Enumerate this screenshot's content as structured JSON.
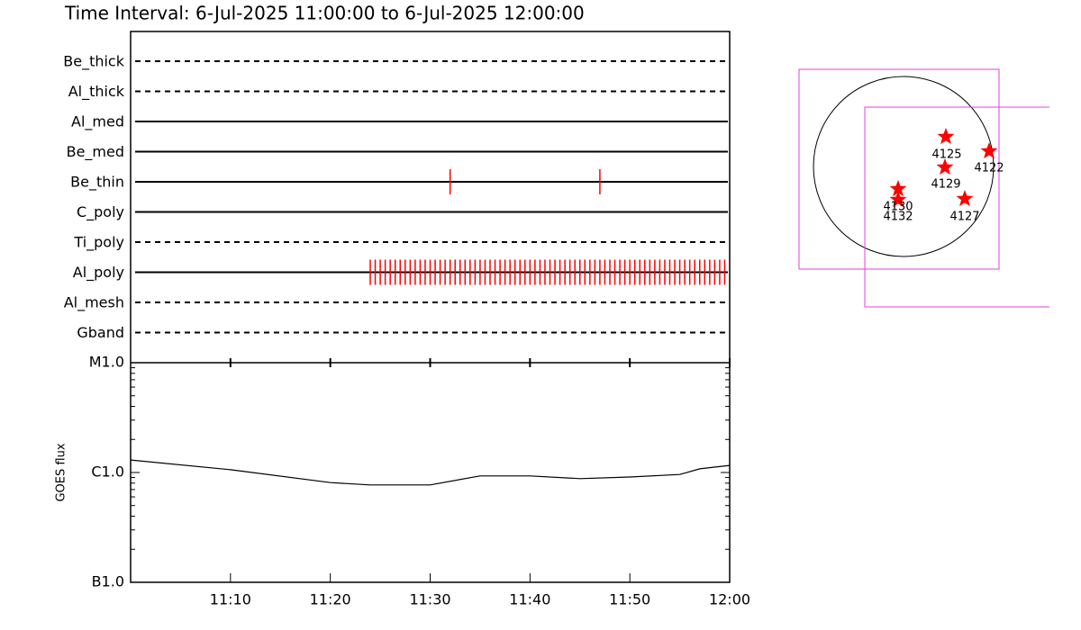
{
  "chart_data": [
    {
      "type": "timeline",
      "title": "Time Interval:  6-Jul-2025 11:00:00 to  6-Jul-2025 12:00:00",
      "xlim": [
        "11:00",
        "12:00"
      ],
      "event_color": "#ff0000",
      "rows": [
        {
          "name": "Be_thick",
          "style": "dashed",
          "events": []
        },
        {
          "name": "Al_thick",
          "style": "dashed",
          "events": []
        },
        {
          "name": "Al_med",
          "style": "solid",
          "events": []
        },
        {
          "name": "Be_med",
          "style": "solid",
          "events": []
        },
        {
          "name": "Be_thin",
          "style": "solid",
          "events": [
            "11:32",
            "11:47"
          ]
        },
        {
          "name": "C_poly",
          "style": "solid",
          "events": []
        },
        {
          "name": "Ti_poly",
          "style": "dashed",
          "events": []
        },
        {
          "name": "Al_poly",
          "style": "solid",
          "events": [
            "11:24:00",
            "11:24:30",
            "11:25:00",
            "11:25:30",
            "11:26:00",
            "11:26:30",
            "11:27:00",
            "11:27:30",
            "11:28:00",
            "11:28:30",
            "11:29:00",
            "11:29:30",
            "11:30:00",
            "11:30:30",
            "11:31:00",
            "11:31:30",
            "11:32:00",
            "11:32:30",
            "11:33:00",
            "11:33:30",
            "11:34:00",
            "11:34:30",
            "11:35:00",
            "11:35:30",
            "11:36:00",
            "11:36:30",
            "11:37:00",
            "11:37:30",
            "11:38:00",
            "11:38:30",
            "11:39:00",
            "11:39:30",
            "11:40:00",
            "11:40:30",
            "11:41:00",
            "11:41:30",
            "11:42:00",
            "11:42:30",
            "11:43:00",
            "11:43:30",
            "11:44:00",
            "11:44:30",
            "11:45:00",
            "11:45:30",
            "11:46:00",
            "11:46:30",
            "11:47:00",
            "11:47:30",
            "11:48:00",
            "11:48:30",
            "11:49:00",
            "11:49:30",
            "11:50:00",
            "11:50:30",
            "11:51:00",
            "11:51:30",
            "11:52:00",
            "11:52:30",
            "11:53:00",
            "11:53:30",
            "11:54:00",
            "11:54:30",
            "11:55:00",
            "11:55:30",
            "11:56:00",
            "11:56:30",
            "11:57:00",
            "11:57:30",
            "11:58:00",
            "11:58:30",
            "11:59:00",
            "11:59:30"
          ]
        },
        {
          "name": "Al_mesh",
          "style": "dashed",
          "events": []
        },
        {
          "name": "Gband",
          "style": "dashed",
          "events": []
        }
      ]
    },
    {
      "type": "line",
      "y_label": "GOES flux",
      "log_scale": true,
      "color": "#000000",
      "x": [
        "11:00",
        "11:10",
        "11:20",
        "11:24",
        "11:30",
        "11:35",
        "11:40",
        "11:45",
        "11:50",
        "11:55",
        "11:57",
        "12:00"
      ],
      "values": [
        1.3e-06,
        1.06e-06,
        8.1e-07,
        7.7e-07,
        7.7e-07,
        9.3e-07,
        9.3e-07,
        8.8e-07,
        9.1e-07,
        9.6e-07,
        1.08e-06,
        1.16e-06
      ],
      "xlim": [
        "11:00",
        "12:00"
      ],
      "xticks": [
        "11:10",
        "11:20",
        "11:30",
        "11:40",
        "11:50",
        "12:00"
      ],
      "ylim": [
        1e-07,
        1e-05
      ],
      "yticks": [
        {
          "value": 1e-07,
          "label": "B1.0"
        },
        {
          "value": 1e-06,
          "label": "C1.0"
        },
        {
          "value": 1e-05,
          "label": "M1.0"
        }
      ],
      "minor_yticks": [
        2e-07,
        3e-07,
        4e-07,
        5e-07,
        6e-07,
        7e-07,
        8e-07,
        9e-07,
        2e-06,
        3e-06,
        4e-06,
        5e-06,
        6e-06,
        7e-06,
        8e-06,
        9e-06
      ]
    }
  ],
  "disk_map": {
    "regions": [
      "4125",
      "4122",
      "4129",
      "4130",
      "4132",
      "4127"
    ]
  }
}
